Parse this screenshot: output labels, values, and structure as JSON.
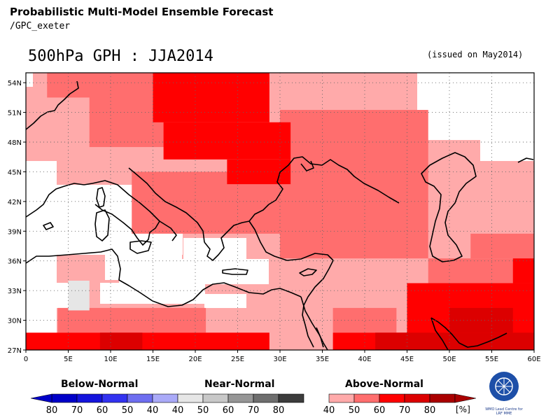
{
  "header": {
    "title": "Probabilistic Multi-Model Ensemble Forecast",
    "subtitle": "/GPC_exeter",
    "map_title": "500hPa GPH : JJA2014",
    "issued": "(issued on May2014)"
  },
  "map": {
    "lon_range": [
      0,
      60
    ],
    "lat_range": [
      27,
      55
    ],
    "x_ticks": [
      "0",
      "5E",
      "10E",
      "15E",
      "20E",
      "25E",
      "30E",
      "35E",
      "40E",
      "45E",
      "50E",
      "55E",
      "60E"
    ],
    "y_ticks": [
      "27N",
      "30N",
      "33N",
      "36N",
      "39N",
      "42N",
      "45N",
      "48N",
      "51N",
      "54N"
    ],
    "grid": "dotted",
    "cell_size_deg": 2.5,
    "near_normal_cells": [
      {
        "lon": 6.25,
        "lat": 32.5,
        "category": "near-normal",
        "level": 40
      }
    ],
    "above_normal_regions": [
      {
        "level": 50,
        "lon": [
          2.5,
          15
        ],
        "lat": [
          52.5,
          55
        ]
      },
      {
        "level": 50,
        "lon": [
          7.5,
          25
        ],
        "lat": [
          47.5,
          53.75
        ]
      },
      {
        "level": 50,
        "lon": [
          30,
          47.5
        ],
        "lat": [
          36.25,
          51.25
        ]
      },
      {
        "level": 50,
        "lon": [
          12.5,
          30
        ],
        "lat": [
          38.75,
          45
        ]
      },
      {
        "level": 50,
        "lon": [
          52.5,
          60
        ],
        "lat": [
          36.25,
          38.75
        ]
      },
      {
        "level": 50,
        "lon": [
          47.5,
          60
        ],
        "lat": [
          31.25,
          36.25
        ]
      },
      {
        "level": 50,
        "lon": [
          3.75,
          21.25
        ],
        "lat": [
          28.75,
          31.25
        ]
      },
      {
        "level": 50,
        "lon": [
          36.25,
          43.75
        ],
        "lat": [
          28.75,
          31.25
        ]
      },
      {
        "level": 60,
        "lon": [
          15,
          28.75
        ],
        "lat": [
          50,
          55
        ]
      },
      {
        "level": 60,
        "lon": [
          16.25,
          31.25
        ],
        "lat": [
          46.25,
          50
        ]
      },
      {
        "level": 60,
        "lon": [
          23.75,
          31.25
        ],
        "lat": [
          43.75,
          46.25
        ]
      },
      {
        "level": 60,
        "lon": [
          57.5,
          60
        ],
        "lat": [
          33.75,
          36.25
        ]
      },
      {
        "level": 60,
        "lon": [
          45,
          60
        ],
        "lat": [
          27,
          33.75
        ]
      },
      {
        "level": 60,
        "lon": [
          0,
          28.75
        ],
        "lat": [
          27,
          28.75
        ]
      },
      {
        "level": 60,
        "lon": [
          36.25,
          45
        ],
        "lat": [
          27,
          28.75
        ]
      },
      {
        "level": 70,
        "lon": [
          8.75,
          13.75
        ],
        "lat": [
          27,
          28.75
        ]
      },
      {
        "level": 70,
        "lon": [
          41.25,
          60
        ],
        "lat": [
          27,
          28.75
        ]
      },
      {
        "level": 70,
        "lon": [
          50,
          57.5
        ],
        "lat": [
          28.75,
          31.25
        ]
      }
    ]
  },
  "legend": {
    "below": {
      "title": "Below-Normal",
      "labels": [
        "80",
        "70",
        "60",
        "50",
        "40"
      ],
      "colors": [
        "#0000c8",
        "#1414dc",
        "#3232f0",
        "#6e6ef0",
        "#aaaaf8"
      ]
    },
    "near": {
      "title": "Near-Normal",
      "labels": [
        "40",
        "50",
        "60",
        "70",
        "80"
      ],
      "colors": [
        "#e6e6e6",
        "#c8c8c8",
        "#969696",
        "#6e6e6e",
        "#3c3c3c"
      ]
    },
    "above": {
      "title": "Above-Normal",
      "labels": [
        "40",
        "50",
        "60",
        "70",
        "80"
      ],
      "colors": [
        "#ffaaaa",
        "#ff6e6e",
        "#ff0000",
        "#dc0000",
        "#aa0000"
      ]
    },
    "unit": "[%]"
  },
  "logo": {
    "caption": "WMO Lead Centre for LRF MME"
  }
}
